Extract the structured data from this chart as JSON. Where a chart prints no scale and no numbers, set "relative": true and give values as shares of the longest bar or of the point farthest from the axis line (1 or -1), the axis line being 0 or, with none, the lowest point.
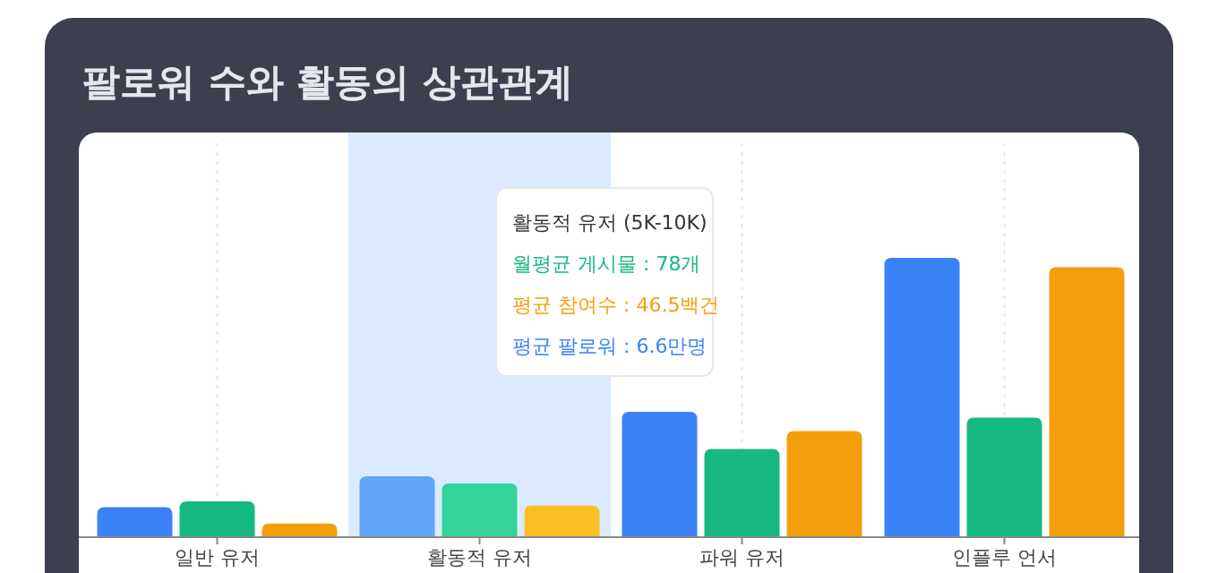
{
  "chart_data": {
    "type": "bar",
    "title": "팔로워 수와 활동의 상관관계",
    "relative": true,
    "grid": "x",
    "categories": [
      "일반 유저",
      "활동적 유저",
      "파워 유저",
      "인플루 언서"
    ],
    "series": [
      {
        "color": "#3b82f6",
        "colors": [
          "#3b82f6",
          "#60a5fa",
          "#3b82f6",
          "#3b82f6"
        ],
        "values": [
          0.107,
          0.218,
          0.449,
          1
        ]
      },
      {
        "color": "#16b981",
        "colors": [
          "#16b981",
          "#34d399",
          "#16b981",
          "#16b981"
        ],
        "values": [
          0.128,
          0.192,
          0.316,
          0.428
        ]
      },
      {
        "color": "#f59e0b",
        "colors": [
          "#f59e0b",
          "#fbbf24",
          "#f59e0b",
          "#f59e0b"
        ],
        "values": [
          0.049,
          0.113,
          0.38,
          0.966
        ]
      }
    ],
    "bands": [
      {
        "axis": "x",
        "from": "활동적 유저",
        "to": "활동적 유저",
        "color": "#dbeafe"
      }
    ],
    "annotations": [
      "활동적 유저 (5K-10K)",
      "월평균 게시물 : 78개",
      "평균 참여수 : 46.5백건",
      "평균 팔로워 : 6.6만명"
    ]
  }
}
